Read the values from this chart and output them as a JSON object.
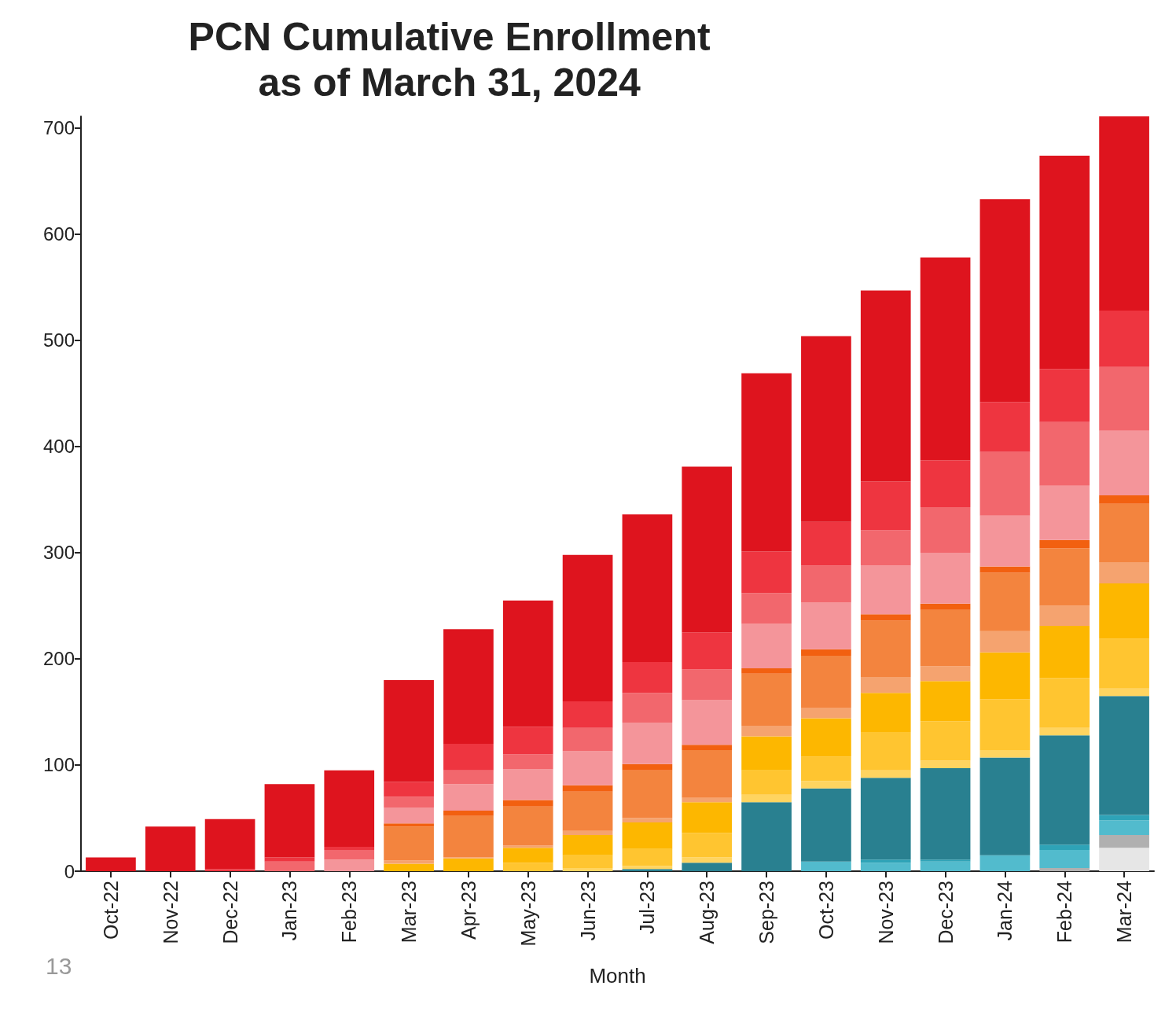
{
  "chart_data": {
    "type": "bar",
    "title": "PCN Cumulative Enrollment\nas of March 31, 2024",
    "xlabel": "Month",
    "stacked": true,
    "categories": [
      "Oct-22",
      "Nov-22",
      "Dec-22",
      "Jan-23",
      "Feb-23",
      "Mar-23",
      "Apr-23",
      "May-23",
      "Jun-23",
      "Jul-23",
      "Aug-23",
      "Sep-23",
      "Oct-23",
      "Nov-23",
      "Dec-23",
      "Jan-24",
      "Feb-24",
      "Mar-24"
    ],
    "ylim": [
      0,
      711
    ],
    "yticks": [
      0,
      100,
      200,
      300,
      400,
      500,
      600,
      700
    ],
    "annotations": [
      "13"
    ],
    "series": [
      {
        "color": "#e6e6e6",
        "values": [
          null,
          null,
          null,
          null,
          null,
          null,
          null,
          null,
          null,
          null,
          null,
          null,
          null,
          null,
          null,
          null,
          null,
          22
        ]
      },
      {
        "color": "#b0b0b0",
        "values": [
          null,
          null,
          null,
          null,
          null,
          null,
          null,
          null,
          null,
          null,
          null,
          null,
          null,
          null,
          null,
          null,
          3,
          12
        ]
      },
      {
        "color": "#52bbcd",
        "values": [
          null,
          null,
          null,
          null,
          null,
          null,
          null,
          null,
          null,
          null,
          null,
          null,
          9,
          8,
          9,
          15,
          17,
          14
        ]
      },
      {
        "color": "#2ea3b7",
        "values": [
          null,
          null,
          null,
          null,
          null,
          null,
          null,
          null,
          null,
          null,
          null,
          null,
          null,
          3,
          2,
          null,
          5,
          5
        ]
      },
      {
        "color": "#298090",
        "values": [
          null,
          null,
          null,
          null,
          null,
          null,
          null,
          null,
          null,
          2,
          8,
          65,
          69,
          77,
          86,
          92,
          103,
          112
        ]
      },
      {
        "color": "#ffd460",
        "values": [
          null,
          null,
          null,
          null,
          null,
          null,
          null,
          null,
          3,
          3,
          5,
          7,
          7,
          7,
          7,
          7,
          7,
          7
        ]
      },
      {
        "color": "#ffc530",
        "values": [
          null,
          null,
          null,
          null,
          null,
          null,
          null,
          8,
          12,
          16,
          23,
          23,
          23,
          36,
          37,
          48,
          47,
          47
        ]
      },
      {
        "color": "#fdb700",
        "values": [
          null,
          null,
          null,
          null,
          null,
          7,
          12,
          14,
          19,
          25,
          29,
          32,
          36,
          37,
          38,
          44,
          49,
          52
        ]
      },
      {
        "color": "#f5a36f",
        "values": [
          null,
          null,
          null,
          null,
          null,
          3,
          1,
          2,
          4,
          4,
          4,
          10,
          10,
          15,
          14,
          20,
          19,
          20
        ]
      },
      {
        "color": "#f3843e",
        "values": [
          null,
          null,
          null,
          null,
          null,
          32,
          39,
          37,
          37,
          45,
          45,
          49,
          49,
          53,
          53,
          55,
          54,
          55
        ]
      },
      {
        "color": "#f26010",
        "values": [
          null,
          null,
          null,
          null,
          null,
          3,
          5,
          6,
          6,
          6,
          5,
          5,
          6,
          6,
          6,
          6,
          8,
          8
        ]
      },
      {
        "color": "#f4959a",
        "values": [
          null,
          null,
          null,
          null,
          11,
          15,
          25,
          29,
          32,
          39,
          42,
          42,
          44,
          46,
          48,
          48,
          51,
          61
        ]
      },
      {
        "color": "#f2676d",
        "values": [
          null,
          null,
          null,
          9,
          9,
          10,
          13,
          14,
          22,
          28,
          29,
          29,
          35,
          33,
          43,
          60,
          60,
          60
        ]
      },
      {
        "color": "#ee3540",
        "values": [
          null,
          null,
          2,
          4,
          3,
          14,
          25,
          26,
          25,
          29,
          35,
          39,
          41,
          46,
          44,
          47,
          50,
          53
        ]
      },
      {
        "color": "#de141e",
        "values": [
          13,
          42,
          47,
          69,
          72,
          96,
          108,
          119,
          138,
          139,
          156,
          168,
          175,
          180,
          191,
          191,
          201,
          183
        ]
      }
    ]
  }
}
